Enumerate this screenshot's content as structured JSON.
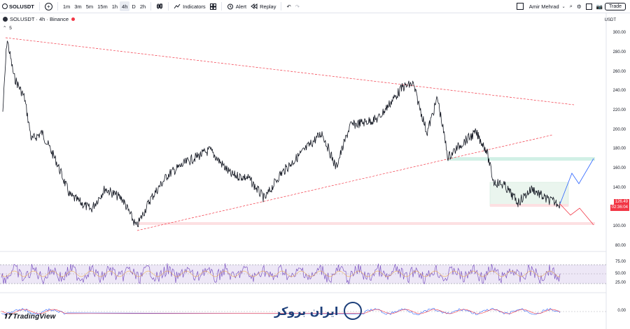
{
  "toolbar": {
    "symbol": "SOLUSDT",
    "intervals": [
      "1m",
      "3m",
      "5m",
      "15m",
      "1h",
      "4h",
      "D",
      "2h"
    ],
    "active_interval": "4h",
    "indicators_label": "Indicators",
    "alert_label": "Alert",
    "replay_label": "Replay",
    "user_name": "Amir Mehrad",
    "trade_label": "Trade"
  },
  "legend": {
    "title": "SOLUSDT · 4h · Binance",
    "indicator_count": "5"
  },
  "price_axis": {
    "currency": "USDT",
    "ticks": [
      "300.00",
      "280.00",
      "260.00",
      "240.00",
      "220.00",
      "200.00",
      "180.00",
      "160.00",
      "140.00",
      "120.00",
      "100.00",
      "80.00"
    ],
    "current_price": "126.49",
    "countdown": "02:36:04"
  },
  "rsi_axis": {
    "ticks": [
      "75.00",
      "50.00",
      "25.00"
    ]
  },
  "macd_axis": {
    "ticks": [
      "0.00"
    ]
  },
  "footer": {
    "logo_text": "TradingView",
    "watermark": "ایران بروکر"
  },
  "colors": {
    "trendline": "#f23645",
    "candles": "#131722",
    "rsi": "#7e57c2",
    "rsi_band": "#ede7f6",
    "zone_green": "#d1f0e6",
    "zone_red": "#fde0e2",
    "projection_up": "#2962ff",
    "projection_down": "#f23645"
  }
}
